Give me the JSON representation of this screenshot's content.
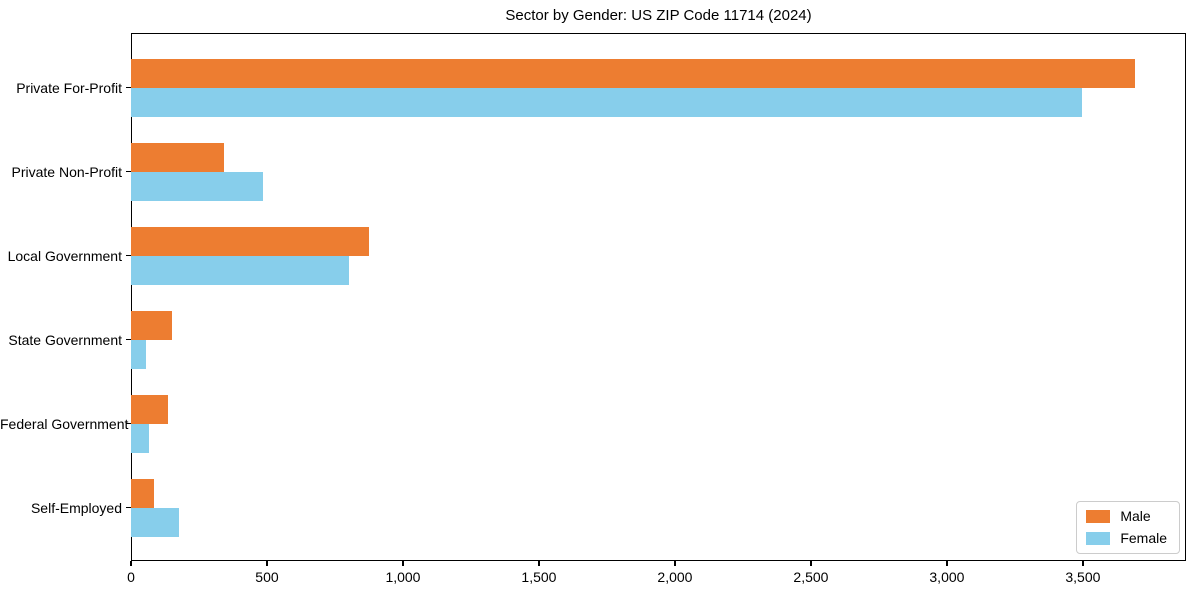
{
  "chart_data": {
    "type": "bar",
    "orientation": "horizontal",
    "title": "Sector by Gender: US ZIP Code 11714 (2024)",
    "categories": [
      "Private For-Profit",
      "Private Non-Profit",
      "Local Government",
      "State Government",
      "Federal Government",
      "Self-Employed"
    ],
    "series": [
      {
        "name": "Male",
        "color": "#ED7D31",
        "values": [
          3690,
          340,
          875,
          150,
          135,
          85
        ]
      },
      {
        "name": "Female",
        "color": "#87CEEB",
        "values": [
          3495,
          485,
          800,
          55,
          65,
          175
        ]
      }
    ],
    "xlabel": "",
    "ylabel": "",
    "xlim": [
      0,
      3879
    ],
    "x_ticks": [
      0,
      500,
      1000,
      1500,
      2000,
      2500,
      3000,
      3500
    ],
    "x_tick_labels": [
      "0",
      "500",
      "1,000",
      "1,500",
      "2,000",
      "2,500",
      "3,000",
      "3,500"
    ],
    "grid": false,
    "legend": {
      "position": "lower right"
    }
  }
}
